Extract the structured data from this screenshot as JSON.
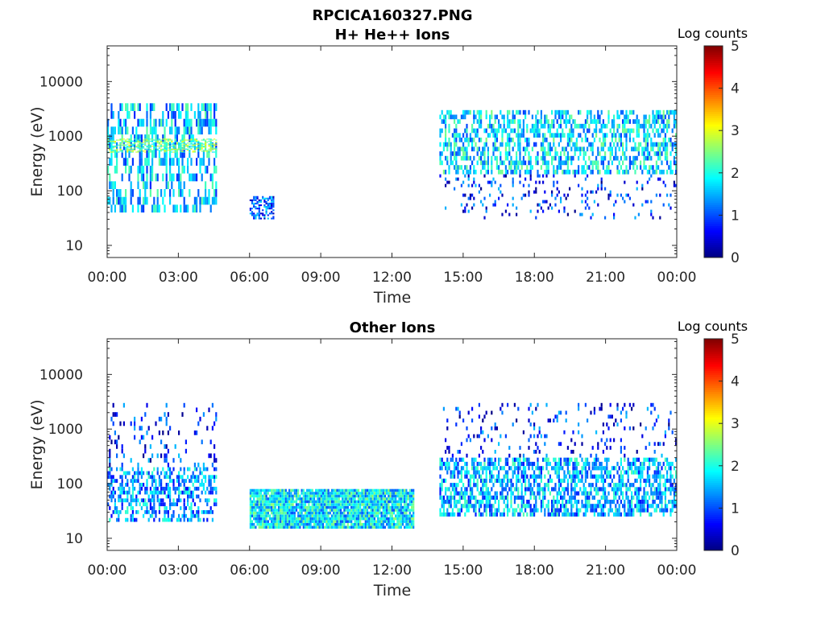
{
  "figure_title": "RPCICA160327.PNG",
  "chart_data": [
    {
      "type": "heatmap",
      "title": "H+ He++ Ions",
      "xlabel": "Time",
      "ylabel": "Energy (eV)",
      "x_tick_labels": [
        "00:00",
        "03:00",
        "06:00",
        "09:00",
        "12:00",
        "15:00",
        "18:00",
        "21:00",
        "00:00"
      ],
      "x_ticks_hours": [
        0,
        3,
        6,
        9,
        12,
        15,
        18,
        21,
        24
      ],
      "xlim_hours": [
        0,
        24
      ],
      "y_scale": "log",
      "y_tick_labels": [
        "10",
        "100",
        "1000",
        "10000"
      ],
      "y_ticks": [
        10,
        100,
        1000,
        10000
      ],
      "ylim": [
        6,
        45000
      ],
      "colorbar": {
        "title": "Log counts",
        "ticks": [
          "0",
          "1",
          "2",
          "3",
          "4",
          "5"
        ],
        "range": [
          0,
          5
        ],
        "colormap": "jet"
      },
      "regions": [
        {
          "t_start": 0.0,
          "t_end": 4.6,
          "e_min": 40,
          "e_max": 4000,
          "level": 1.6,
          "density": 0.45
        },
        {
          "t_start": 0.0,
          "t_end": 4.6,
          "e_min": 500,
          "e_max": 900,
          "level": 2.4,
          "density": 0.5
        },
        {
          "t_start": 6.0,
          "t_end": 7.0,
          "e_min": 30,
          "e_max": 80,
          "level": 1.0,
          "density": 0.6
        },
        {
          "t_start": 14.0,
          "t_end": 24.0,
          "e_min": 200,
          "e_max": 3000,
          "level": 1.7,
          "density": 0.5
        },
        {
          "t_start": 14.0,
          "t_end": 24.0,
          "e_min": 30,
          "e_max": 200,
          "level": 0.8,
          "density": 0.12
        }
      ]
    },
    {
      "type": "heatmap",
      "title": "Other Ions",
      "xlabel": "Time",
      "ylabel": "Energy (eV)",
      "x_tick_labels": [
        "00:00",
        "03:00",
        "06:00",
        "09:00",
        "12:00",
        "15:00",
        "18:00",
        "21:00",
        "00:00"
      ],
      "x_ticks_hours": [
        0,
        3,
        6,
        9,
        12,
        15,
        18,
        21,
        24
      ],
      "xlim_hours": [
        0,
        24
      ],
      "y_scale": "log",
      "y_tick_labels": [
        "10",
        "100",
        "1000",
        "10000"
      ],
      "y_ticks": [
        10,
        100,
        1000,
        10000
      ],
      "ylim": [
        6,
        45000
      ],
      "colorbar": {
        "title": "Log counts",
        "ticks": [
          "0",
          "1",
          "2",
          "3",
          "4",
          "5"
        ],
        "range": [
          0,
          5
        ],
        "colormap": "jet"
      },
      "regions": [
        {
          "t_start": 0.0,
          "t_end": 4.6,
          "e_min": 20,
          "e_max": 200,
          "level": 1.4,
          "density": 0.5
        },
        {
          "t_start": 0.0,
          "t_end": 4.6,
          "e_min": 200,
          "e_max": 3000,
          "level": 0.8,
          "density": 0.12
        },
        {
          "t_start": 6.0,
          "t_end": 12.9,
          "e_min": 15,
          "e_max": 80,
          "level": 1.8,
          "density": 0.95
        },
        {
          "t_start": 14.0,
          "t_end": 24.0,
          "e_min": 25,
          "e_max": 300,
          "level": 1.5,
          "density": 0.6
        },
        {
          "t_start": 14.0,
          "t_end": 24.0,
          "e_min": 300,
          "e_max": 3000,
          "level": 0.8,
          "density": 0.1
        }
      ]
    }
  ]
}
